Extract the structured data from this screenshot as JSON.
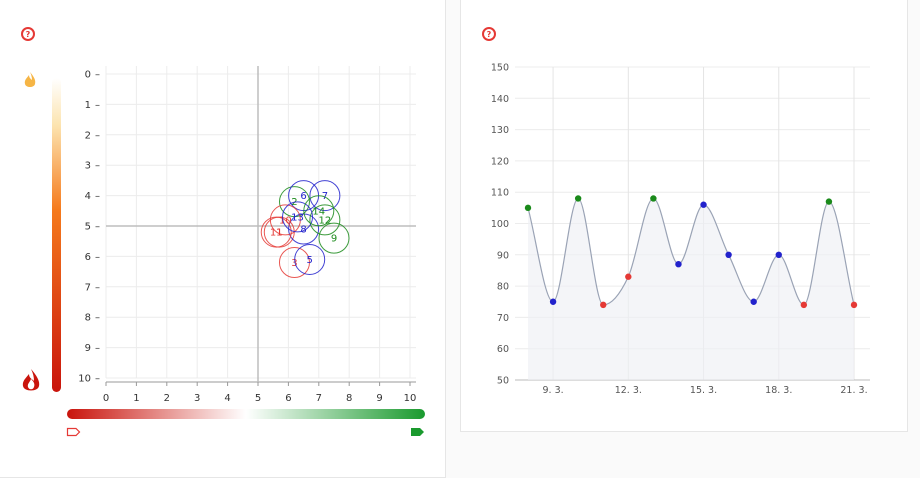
{
  "colors": {
    "red": "#e53935",
    "blue": "#2222cc",
    "green": "#1a8a1a",
    "orange": "#f5a020",
    "gradient_red": "#c9140c",
    "gradient_green": "#1a9a2e"
  },
  "icons": {
    "help": "?",
    "flame_light": "flame-light-icon",
    "flame_dark": "flame-dark-icon",
    "tag_outline": "tag-outline-icon",
    "tag_filled": "tag-filled-icon"
  },
  "chart_data": [
    {
      "type": "scatter",
      "title": "",
      "xlabel": "",
      "ylabel": "",
      "xlim": [
        0,
        10
      ],
      "ylim": [
        10,
        0
      ],
      "x_ticks": [
        "0",
        "1",
        "2",
        "3",
        "4",
        "5",
        "6",
        "7",
        "8",
        "9",
        "10"
      ],
      "y_ticks": [
        "0",
        "1",
        "2",
        "3",
        "4",
        "5",
        "6",
        "7",
        "8",
        "9",
        "10"
      ],
      "crosshair": [
        5,
        5
      ],
      "grid": true,
      "points": [
        {
          "label": "1",
          "x": 5.7,
          "y": 5.2,
          "color": "red"
        },
        {
          "label": "2",
          "x": 6.2,
          "y": 4.2,
          "color": "green"
        },
        {
          "label": "3",
          "x": 6.2,
          "y": 6.2,
          "color": "red"
        },
        {
          "label": "5",
          "x": 6.7,
          "y": 6.1,
          "color": "blue"
        },
        {
          "label": "6",
          "x": 6.5,
          "y": 4.0,
          "color": "blue"
        },
        {
          "label": "7",
          "x": 7.2,
          "y": 4.0,
          "color": "blue"
        },
        {
          "label": "8",
          "x": 6.5,
          "y": 5.1,
          "color": "blue"
        },
        {
          "label": "9",
          "x": 7.5,
          "y": 5.4,
          "color": "green"
        },
        {
          "label": "10",
          "x": 5.9,
          "y": 4.8,
          "color": "red"
        },
        {
          "label": "11",
          "x": 5.6,
          "y": 5.2,
          "color": "red"
        },
        {
          "label": "12",
          "x": 7.2,
          "y": 4.8,
          "color": "green"
        },
        {
          "label": "13",
          "x": 6.3,
          "y": 4.7,
          "color": "blue"
        },
        {
          "label": "14",
          "x": 7.0,
          "y": 4.5,
          "color": "green"
        }
      ]
    },
    {
      "type": "line",
      "title": "",
      "xlabel": "",
      "ylabel": "",
      "ylim": [
        50,
        150
      ],
      "y_ticks": [
        "50",
        "60",
        "70",
        "80",
        "90",
        "100",
        "110",
        "120",
        "130",
        "140",
        "150"
      ],
      "x_tick_labels": [
        "9. 3.",
        "12. 3.",
        "15. 3.",
        "18. 3.",
        "21. 3."
      ],
      "x_tick_days": [
        9,
        12,
        15,
        18,
        21
      ],
      "x_days": [
        8,
        9,
        10,
        11,
        12,
        13,
        14,
        15,
        16,
        17,
        18,
        19,
        20,
        21
      ],
      "values": [
        105,
        75,
        108,
        74,
        83,
        108,
        87,
        106,
        90,
        75,
        90,
        74,
        107,
        74
      ],
      "point_colors": [
        "green",
        "blue",
        "green",
        "red",
        "red",
        "green",
        "blue",
        "blue",
        "blue",
        "blue",
        "blue",
        "red",
        "green",
        "red"
      ],
      "grid": true
    }
  ]
}
